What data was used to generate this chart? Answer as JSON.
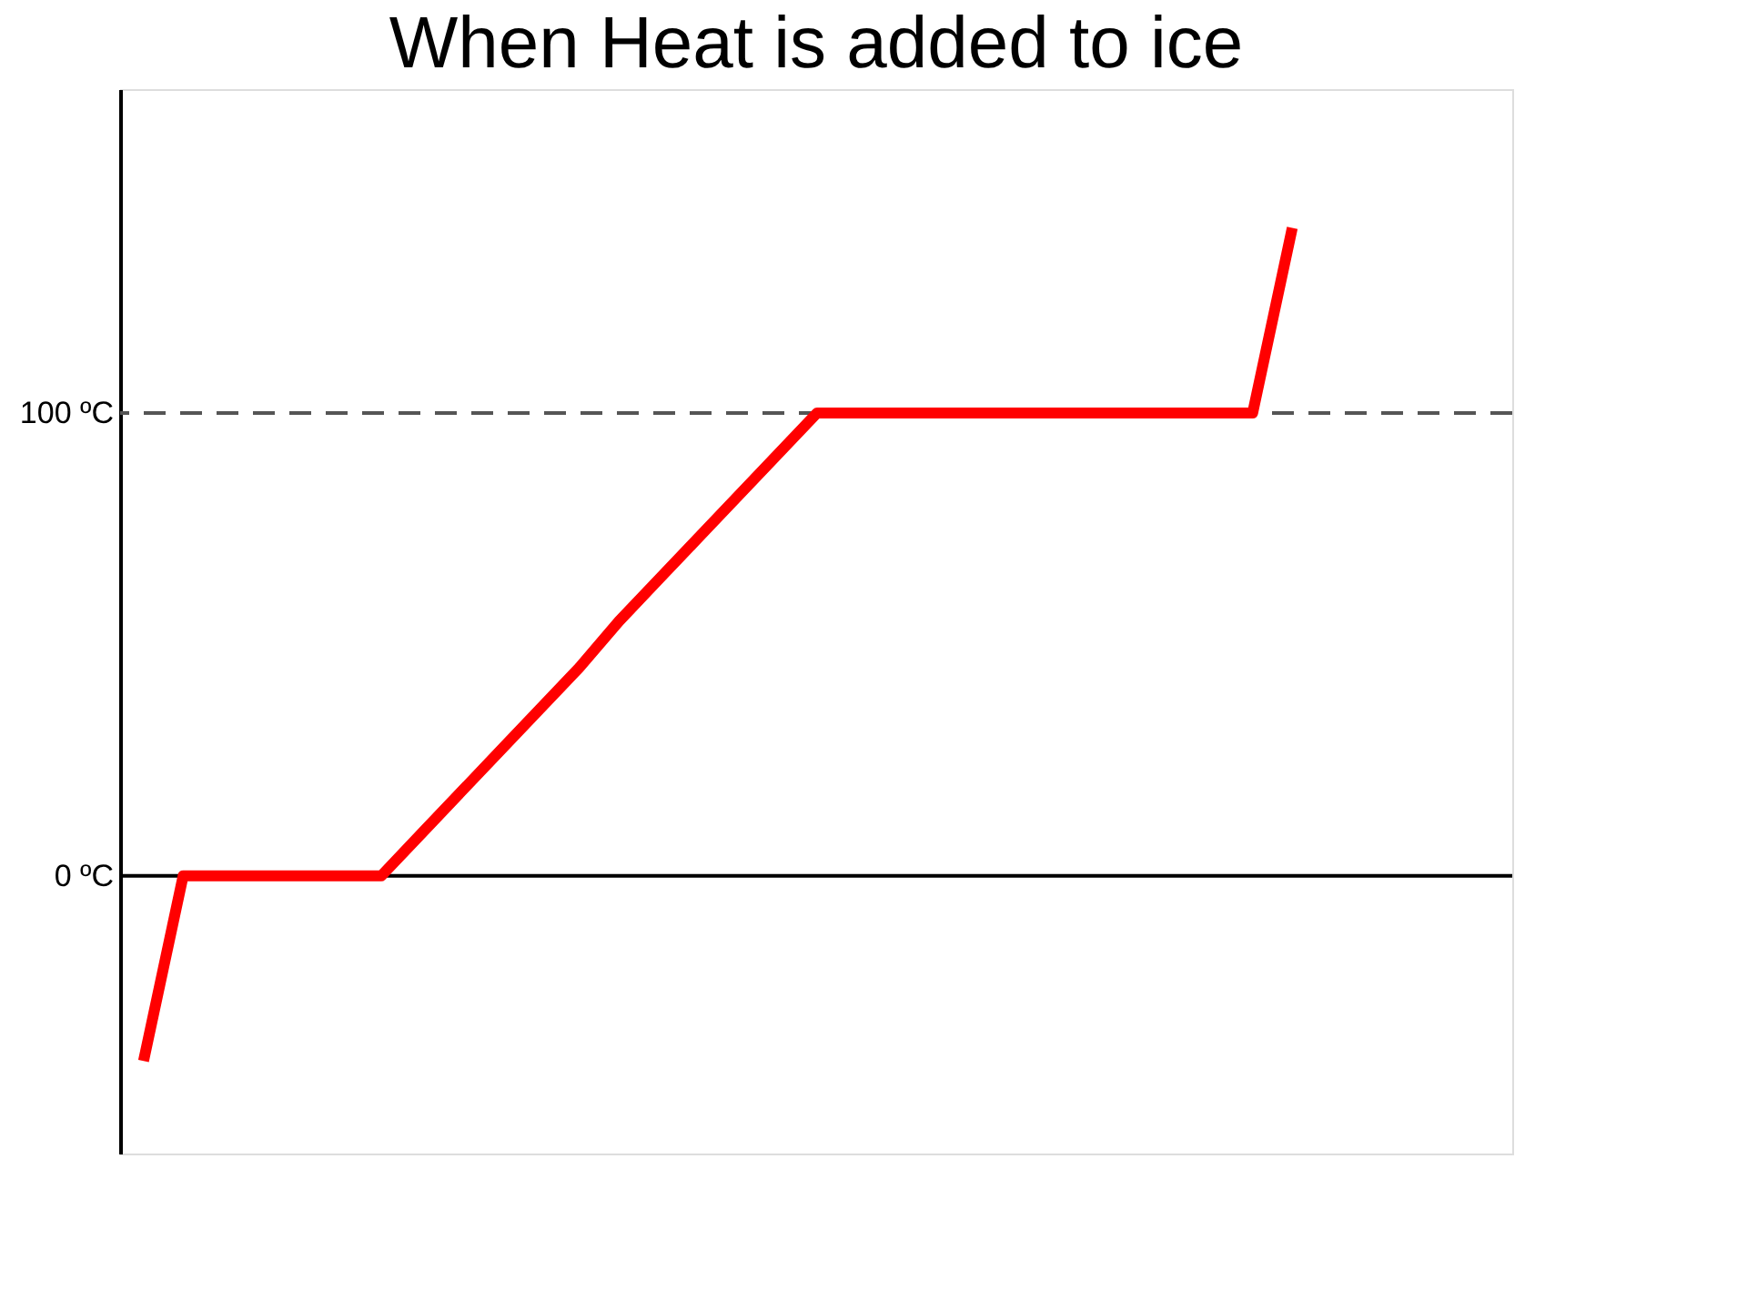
{
  "chart_data": {
    "type": "line",
    "title": "When Heat is added to ice",
    "categories": [
      null,
      null,
      null,
      null,
      null,
      null,
      null,
      null,
      null,
      null,
      null,
      null,
      null,
      null,
      null,
      null,
      null,
      null,
      null,
      null,
      null,
      null,
      null,
      null,
      null,
      null,
      null,
      null,
      null,
      null
    ],
    "series": [
      {
        "color": "#ff0000",
        "values": [
          -40,
          0,
          0,
          0,
          0,
          0,
          0,
          9,
          18,
          27,
          36,
          45,
          55,
          64,
          73,
          82,
          91,
          100,
          100,
          100,
          100,
          100,
          100,
          100,
          100,
          100,
          100,
          100,
          100,
          140
        ]
      }
    ],
    "ylim": [
      -60,
      170
    ],
    "yticks": [
      {
        "value": 0,
        "label": "0 ºC"
      },
      {
        "value": 100,
        "label": "100 ºC"
      }
    ],
    "ref_lines": [
      {
        "axis": "y",
        "value": 100,
        "color": "#555555",
        "line_style": "dashed"
      }
    ],
    "tick_labels": "y",
    "grid": false,
    "marker": "none",
    "line_style": "solid"
  }
}
